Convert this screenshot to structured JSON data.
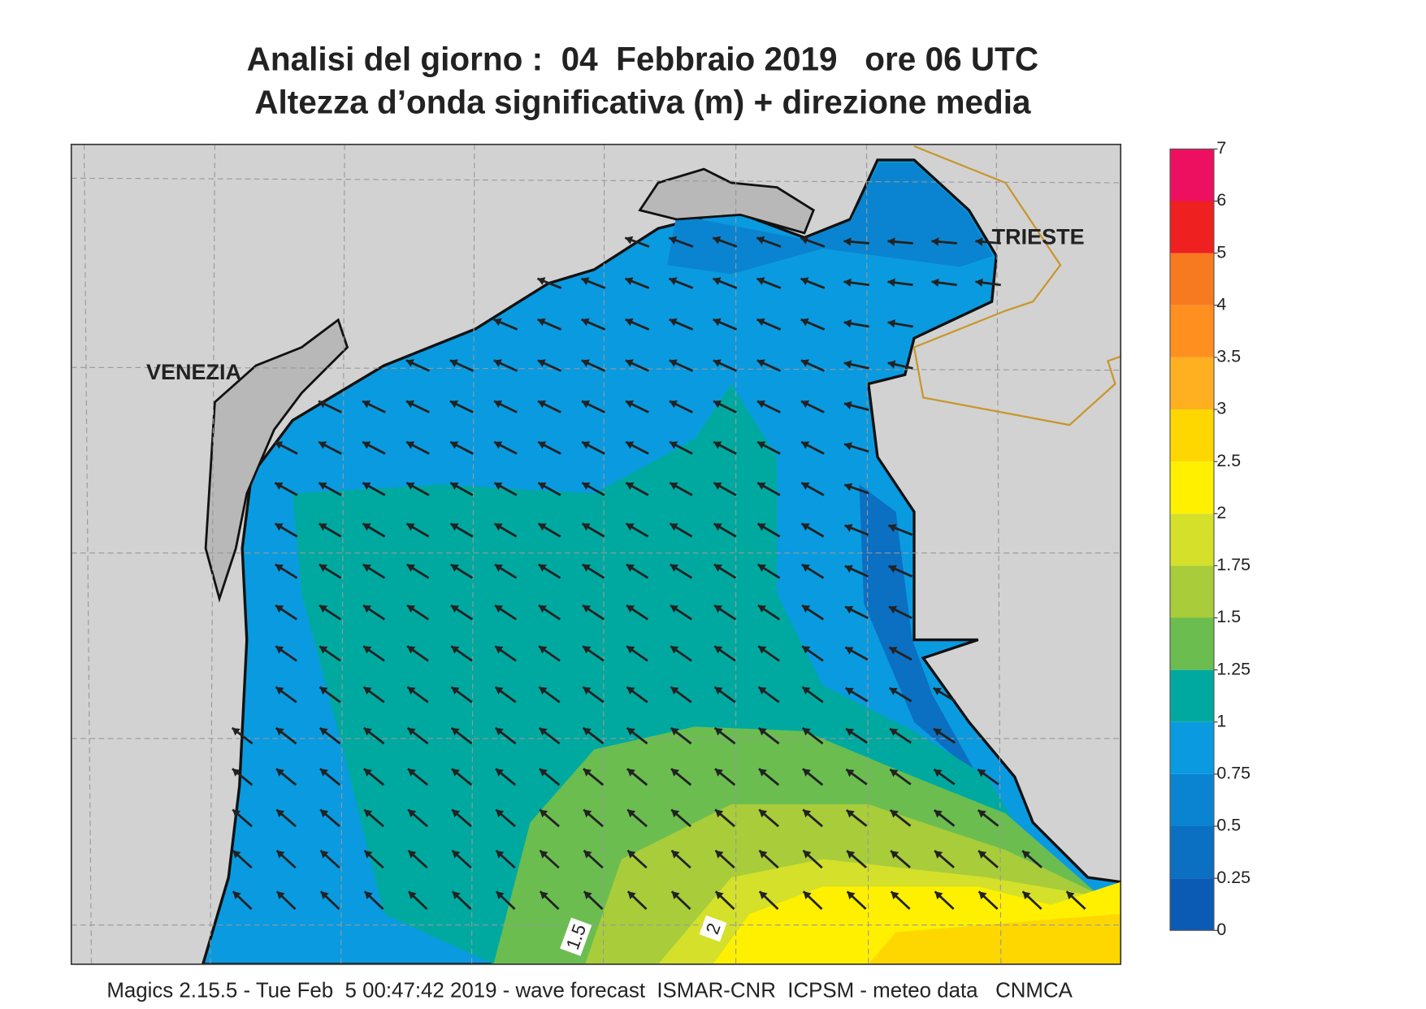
{
  "header": {
    "title": "Analisi del giorno :  04  Febbraio 2019   ore 06 UTC",
    "subtitle": "Altezza d’onda significativa (m) + direzione media"
  },
  "map": {
    "places": [
      "VENEZIA",
      "TRIESTE"
    ],
    "contour_labels": [
      "1.5",
      "2"
    ]
  },
  "colorbar": {
    "levels": [
      0,
      0.25,
      0.5,
      0.75,
      1,
      1.25,
      1.5,
      1.75,
      2,
      2.5,
      3,
      3.5,
      4,
      5,
      6,
      7
    ],
    "colors": [
      "#0b5bb5",
      "#0b6fc2",
      "#0a84d0",
      "#0a9ae0",
      "#00a9a0",
      "#6bbd50",
      "#a8cc3a",
      "#d4e02a",
      "#fff000",
      "#ffd700",
      "#ffb020",
      "#ff9020",
      "#f87a20",
      "#ee2020",
      "#ee1060"
    ]
  },
  "footer": "Magics 2.15.5 - Tue Feb  5 00:47:42 2019 - wave forecast  ISMAR-CNR  ICPSM - meteo data   CNMCA"
}
